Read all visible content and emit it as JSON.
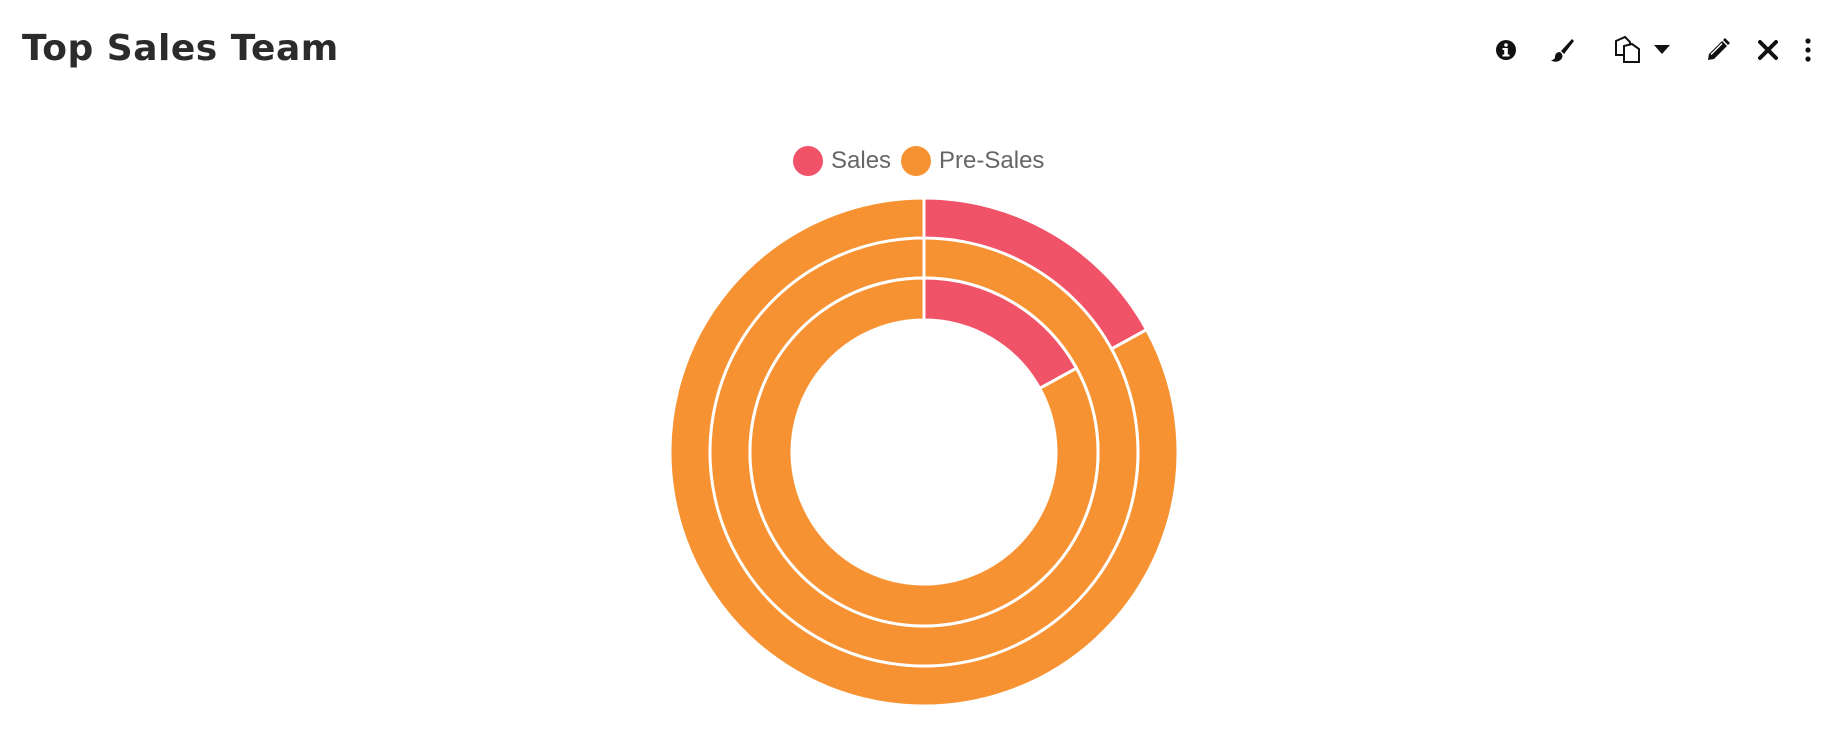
{
  "widget": {
    "title": "Top Sales Team"
  },
  "toolbar": {
    "icons": [
      "info-icon",
      "paintbrush-icon",
      "copy-icon",
      "caret-down-icon",
      "pencil-icon",
      "close-icon",
      "more-vertical-icon"
    ]
  },
  "colors": {
    "sales": "#f05268",
    "presales": "#f79232"
  },
  "chart_data": {
    "type": "pie",
    "subtype": "multi-ring doughnut",
    "title": "Top Sales Team",
    "legend": {
      "position": "top",
      "entries": [
        "Sales",
        "Pre-Sales"
      ]
    },
    "categories": [
      "Sales",
      "Pre-Sales"
    ],
    "series": [
      {
        "values": [
          17,
          83
        ]
      },
      {
        "values": [
          0,
          100
        ]
      },
      {
        "values": [
          17,
          83
        ]
      }
    ]
  }
}
